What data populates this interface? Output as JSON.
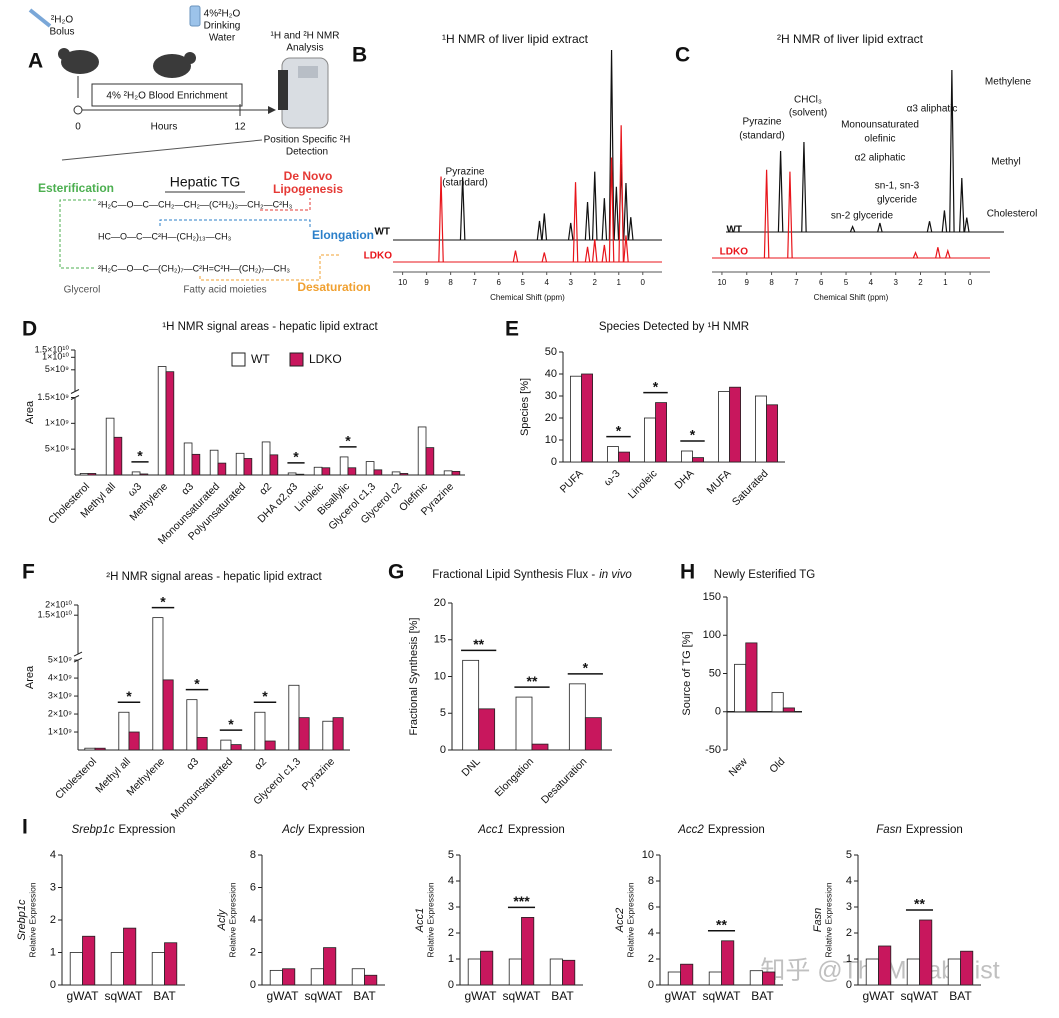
{
  "figure": {
    "panel_letters": [
      "A",
      "B",
      "C",
      "D",
      "E",
      "F",
      "G",
      "H",
      "I"
    ],
    "panel_a": {
      "bolus": [
        "²H₂O",
        "Bolus"
      ],
      "drinking": [
        "4%²H₂O",
        "Drinking",
        "Water"
      ],
      "analysis": [
        "¹H and ²H NMR",
        "Analysis"
      ],
      "enrichment": "4% ²H₂O Blood Enrichment",
      "timeline_ticks": [
        0,
        12
      ],
      "time_label": "Hours",
      "detection": [
        "Position Specific ²H",
        "Detection"
      ],
      "tg_title": "Hepatic TG",
      "esterification": "Esterification",
      "dnl": [
        "De Novo",
        "Lipogenesis"
      ],
      "elongation": "Elongation",
      "desaturation": "Desaturation",
      "glycerol": "Glycerol",
      "fatty_acid": "Fatty acid moieties",
      "structure": [
        "²H₂C—O—C—CH₂—CH₂—(C²H₂)₃—CH₂—C²H₃",
        "HC—O—C—C²H—(CH₂)₁₃—CH₃",
        "²H₂C—O—C—(CH₂)₇—C²H=C²H—(CH₂)₇—CH₃"
      ]
    },
    "watermark": "知乎 @TheMetabolist"
  },
  "chart_data": [
    {
      "type": "spectrum",
      "title": "¹H NMR of liver lipid extract",
      "xlabel": "Chemical Shift (ppm)",
      "xlim": [
        10.4,
        -0.8
      ],
      "xticks": [
        10,
        9,
        8,
        7,
        6,
        5,
        4,
        3,
        2,
        1,
        0
      ],
      "series": [
        {
          "name": "WT",
          "color": "#111111",
          "peaks": [
            {
              "x": 7.5,
              "height": 0.33
            },
            {
              "x": 4.3,
              "height": 0.1
            },
            {
              "x": 4.1,
              "height": 0.14
            },
            {
              "x": 3.0,
              "height": 0.09
            },
            {
              "x": 2.3,
              "height": 0.2
            },
            {
              "x": 2.0,
              "height": 0.36
            },
            {
              "x": 1.6,
              "height": 0.22
            },
            {
              "x": 1.3,
              "height": 1.0
            },
            {
              "x": 1.1,
              "height": 0.28
            },
            {
              "x": 0.9,
              "height": 0.4
            },
            {
              "x": 0.7,
              "height": 0.3
            },
            {
              "x": 0.5,
              "height": 0.12
            }
          ]
        },
        {
          "name": "LDKO",
          "color": "#e8151b",
          "peaks": [
            {
              "x": 8.4,
              "height": 0.45
            },
            {
              "x": 5.3,
              "height": 0.06
            },
            {
              "x": 4.1,
              "height": 0.05
            },
            {
              "x": 2.8,
              "height": 0.42
            },
            {
              "x": 2.3,
              "height": 0.08
            },
            {
              "x": 2.0,
              "height": 0.12
            },
            {
              "x": 1.6,
              "height": 0.09
            },
            {
              "x": 1.3,
              "height": 0.55
            },
            {
              "x": 0.9,
              "height": 0.72
            },
            {
              "x": 0.7,
              "height": 0.14
            }
          ]
        }
      ],
      "annotations": [
        [
          "Pyrazine",
          "(standard)"
        ]
      ]
    },
    {
      "type": "spectrum",
      "title": "²H NMR of liver lipid extract",
      "xlabel": "Chemical Shift (ppm)",
      "xlim": [
        10.4,
        -0.8
      ],
      "xticks": [
        10,
        9,
        8,
        7,
        6,
        5,
        4,
        3,
        2,
        1,
        0
      ],
      "series": [
        {
          "name": "WT",
          "color": "#111111",
          "peaks": [
            {
              "x": 8.2,
              "height": 0.45
            },
            {
              "x": 7.26,
              "height": 0.5
            },
            {
              "x": 5.3,
              "height": 0.03
            },
            {
              "x": 4.2,
              "height": 0.05
            },
            {
              "x": 2.2,
              "height": 0.06
            },
            {
              "x": 1.6,
              "height": 0.12
            },
            {
              "x": 1.3,
              "height": 0.9
            },
            {
              "x": 0.9,
              "height": 0.3
            },
            {
              "x": 0.7,
              "height": 0.08
            }
          ]
        },
        {
          "name": "LDKO",
          "color": "#e8151b",
          "peaks": [
            {
              "x": 8.2,
              "height": 0.49
            },
            {
              "x": 7.26,
              "height": 0.48
            },
            {
              "x": 2.2,
              "height": 0.03
            },
            {
              "x": 1.3,
              "height": 0.06
            },
            {
              "x": 0.9,
              "height": 0.04
            }
          ]
        }
      ],
      "annotations": [
        [
          "Pyrazine",
          "(standard)"
        ],
        [
          "CHCl₃",
          "(solvent)"
        ],
        [
          "Monounsaturated",
          "olefinic"
        ],
        [
          "α3 aliphatic"
        ],
        [
          "Methylene"
        ],
        [
          "α2 aliphatic"
        ],
        [
          "Methyl"
        ],
        [
          "sn-1, sn-3",
          "glyceride"
        ],
        [
          "sn-2 glyceride"
        ],
        [
          "Cholesterol"
        ]
      ]
    },
    {
      "type": "bar",
      "title": "¹H NMR signal areas - hepatic lipid extract",
      "ylabel": "Area",
      "categories": [
        "Cholesterol",
        "Methyl all",
        "ω3",
        "Methylene",
        "α3",
        "Monounsaturated",
        "Polyunsaturated",
        "α2",
        "DHA α2,α3",
        "Linoleic",
        "Bisallylic",
        "Glycerol c1,3",
        "Glycerol c2",
        "Olefinic",
        "Pyrazine"
      ],
      "series": [
        {
          "name": "WT",
          "color": "#ffffff",
          "values": [
            30000000,
            1100000000,
            60000000,
            6000000000,
            620000000,
            480000000,
            420000000,
            640000000,
            40000000,
            150000000,
            350000000,
            260000000,
            60000000,
            930000000,
            80000000
          ]
        },
        {
          "name": "LDKO",
          "color": "#c8175d",
          "values": [
            30000000,
            730000000,
            20000000,
            4500000000,
            400000000,
            230000000,
            320000000,
            390000000,
            15000000,
            140000000,
            140000000,
            100000000,
            30000000,
            530000000,
            70000000
          ]
        }
      ],
      "ylim": [
        0,
        15000000000
      ],
      "axis_break": 1500000000,
      "yticks": [
        {
          "value": 500000000,
          "label": "5×10⁸"
        },
        {
          "value": 1000000000,
          "label": "1×10⁹"
        },
        {
          "value": 1500000000,
          "label": "1.5×10⁹"
        },
        {
          "value": 5000000000,
          "label": "5×10⁹"
        },
        {
          "value": 10000000000,
          "label": "1×10¹⁰"
        },
        {
          "value": 15000000000,
          "label": "1.5×10¹⁰"
        }
      ],
      "legend": "top",
      "annotations": [
        {
          "text": "*",
          "at": "ω3"
        },
        {
          "text": "*",
          "at": "DHA α2,α3"
        },
        {
          "text": "*",
          "at": "Bisallylic"
        }
      ]
    },
    {
      "type": "bar",
      "title": "Species Detected by ¹H NMR",
      "ylabel": "Species [%]",
      "categories": [
        "PUFA",
        "ω-3",
        "Linoleic",
        "DHA",
        "MUFA",
        "Saturated"
      ],
      "series": [
        {
          "name": "WT",
          "color": "#ffffff",
          "values": [
            39,
            7,
            20,
            5,
            32,
            30
          ]
        },
        {
          "name": "LDKO",
          "color": "#c8175d",
          "values": [
            40,
            4.5,
            27,
            2,
            34,
            26
          ]
        }
      ],
      "ylim": [
        0,
        50
      ],
      "yticks": [
        0,
        10,
        20,
        30,
        40,
        50
      ],
      "annotations": [
        {
          "text": "*",
          "at": "ω-3"
        },
        {
          "text": "*",
          "at": "Linoleic"
        },
        {
          "text": "*",
          "at": "DHA"
        }
      ]
    },
    {
      "type": "bar",
      "title": "²H NMR signal areas - hepatic lipid extract",
      "ylabel": "Area",
      "categories": [
        "Cholesterol",
        "Methyl all",
        "Methylene",
        "α3",
        "Monounsaturated",
        "α2",
        "Glycerol c1,3",
        "Pyrazine"
      ],
      "series": [
        {
          "name": "WT",
          "color": "#ffffff",
          "values": [
            100000000,
            2100000000,
            14000000000,
            2800000000,
            550000000,
            2100000000,
            3600000000,
            1600000000
          ]
        },
        {
          "name": "LDKO",
          "color": "#c8175d",
          "values": [
            100000000,
            1000000000,
            3900000000,
            700000000,
            300000000,
            500000000,
            1800000000,
            1800000000
          ]
        }
      ],
      "ylim": [
        0,
        20000000000
      ],
      "axis_break": 5000000000,
      "yticks": [
        {
          "value": 1000000000,
          "label": "1×10⁹"
        },
        {
          "value": 2000000000,
          "label": "2×10⁹"
        },
        {
          "value": 3000000000,
          "label": "3×10⁹"
        },
        {
          "value": 4000000000,
          "label": "4×10⁹"
        },
        {
          "value": 5000000000,
          "label": "5×10⁹"
        },
        {
          "value": 15000000000,
          "label": "1.5×10¹⁰"
        },
        {
          "value": 20000000000,
          "label": "2×10¹⁰"
        }
      ],
      "annotations": [
        {
          "text": "*",
          "at": "Methyl all"
        },
        {
          "text": "*",
          "at": "Methylene"
        },
        {
          "text": "*",
          "at": "α3"
        },
        {
          "text": "*",
          "at": "Monounsaturated"
        },
        {
          "text": "*",
          "at": "α2"
        }
      ]
    },
    {
      "type": "bar",
      "title": "Fractional Lipid Synthesis Flux -",
      "title_italic": "in vivo",
      "ylabel": "Fractional Synthesis [%]",
      "categories": [
        "DNL",
        "Elongation",
        "Desaturation"
      ],
      "series": [
        {
          "name": "WT",
          "color": "#ffffff",
          "values": [
            12.2,
            7.2,
            9
          ]
        },
        {
          "name": "LDKO",
          "color": "#c8175d",
          "values": [
            5.6,
            0.8,
            4.4
          ]
        }
      ],
      "ylim": [
        0,
        20
      ],
      "yticks": [
        0,
        5,
        10,
        15,
        20
      ],
      "annotations": [
        {
          "text": "**",
          "at": "DNL"
        },
        {
          "text": "**",
          "at": "Elongation"
        },
        {
          "text": "*",
          "at": "Desaturation"
        }
      ]
    },
    {
      "type": "bar",
      "title": "Newly Esterified TG",
      "ylabel": "Source of TG [%]",
      "categories": [
        "New",
        "Old"
      ],
      "series": [
        {
          "name": "WT",
          "color": "#ffffff",
          "values": [
            62,
            25
          ]
        },
        {
          "name": "LDKO",
          "color": "#c8175d",
          "values": [
            90,
            5
          ]
        }
      ],
      "ylim": [
        -50,
        150
      ],
      "yticks": [
        -50,
        0,
        50,
        100,
        150
      ]
    },
    {
      "type": "bar",
      "gene": "Srebp1c",
      "title": "Expression",
      "ylabel": "Relative Expression",
      "categories": [
        "gWAT",
        "sqWAT",
        "BAT"
      ],
      "series": [
        {
          "name": "WT",
          "color": "#ffffff",
          "values": [
            1,
            1,
            1
          ]
        },
        {
          "name": "LDKO",
          "color": "#c8175d",
          "values": [
            1.5,
            1.75,
            1.3
          ]
        }
      ],
      "ylim": [
        0,
        4
      ],
      "yticks": [
        0,
        1,
        2,
        3,
        4
      ]
    },
    {
      "type": "bar",
      "gene": "Acly",
      "title": "Expression",
      "ylabel": "Relative Expression",
      "categories": [
        "gWAT",
        "sqWAT",
        "BAT"
      ],
      "series": [
        {
          "name": "WT",
          "color": "#ffffff",
          "values": [
            0.9,
            1,
            1
          ]
        },
        {
          "name": "LDKO",
          "color": "#c8175d",
          "values": [
            1,
            2.3,
            0.6
          ]
        }
      ],
      "ylim": [
        0,
        8
      ],
      "yticks": [
        0,
        2,
        4,
        6,
        8
      ]
    },
    {
      "type": "bar",
      "gene": "Acc1",
      "title": "Expression",
      "ylabel": "Relative Expression",
      "categories": [
        "gWAT",
        "sqWAT",
        "BAT"
      ],
      "series": [
        {
          "name": "WT",
          "color": "#ffffff",
          "values": [
            1,
            1,
            1
          ]
        },
        {
          "name": "LDKO",
          "color": "#c8175d",
          "values": [
            1.3,
            2.6,
            0.95
          ]
        }
      ],
      "ylim": [
        0,
        5
      ],
      "yticks": [
        0,
        1,
        2,
        3,
        4,
        5
      ],
      "annotations": [
        {
          "text": "***",
          "at": "sqWAT"
        }
      ]
    },
    {
      "type": "bar",
      "gene": "Acc2",
      "title": "Expression",
      "ylabel": "Relative Expression",
      "categories": [
        "gWAT",
        "sqWAT",
        "BAT"
      ],
      "series": [
        {
          "name": "WT",
          "color": "#ffffff",
          "values": [
            1,
            1,
            1.1
          ]
        },
        {
          "name": "LDKO",
          "color": "#c8175d",
          "values": [
            1.6,
            3.4,
            1
          ]
        }
      ],
      "ylim": [
        0,
        10
      ],
      "yticks": [
        0,
        2,
        4,
        6,
        8,
        10
      ],
      "annotations": [
        {
          "text": "**",
          "at": "sqWAT"
        }
      ]
    },
    {
      "type": "bar",
      "gene": "Fasn",
      "title": "Expression",
      "ylabel": "Relative Expression",
      "categories": [
        "gWAT",
        "sqWAT",
        "BAT"
      ],
      "series": [
        {
          "name": "WT",
          "color": "#ffffff",
          "values": [
            1,
            1,
            1
          ]
        },
        {
          "name": "LDKO",
          "color": "#c8175d",
          "values": [
            1.5,
            2.5,
            1.3
          ]
        }
      ],
      "ylim": [
        0,
        5
      ],
      "yticks": [
        0,
        1,
        2,
        3,
        4,
        5
      ],
      "annotations": [
        {
          "text": "**",
          "at": "sqWAT"
        }
      ]
    }
  ]
}
